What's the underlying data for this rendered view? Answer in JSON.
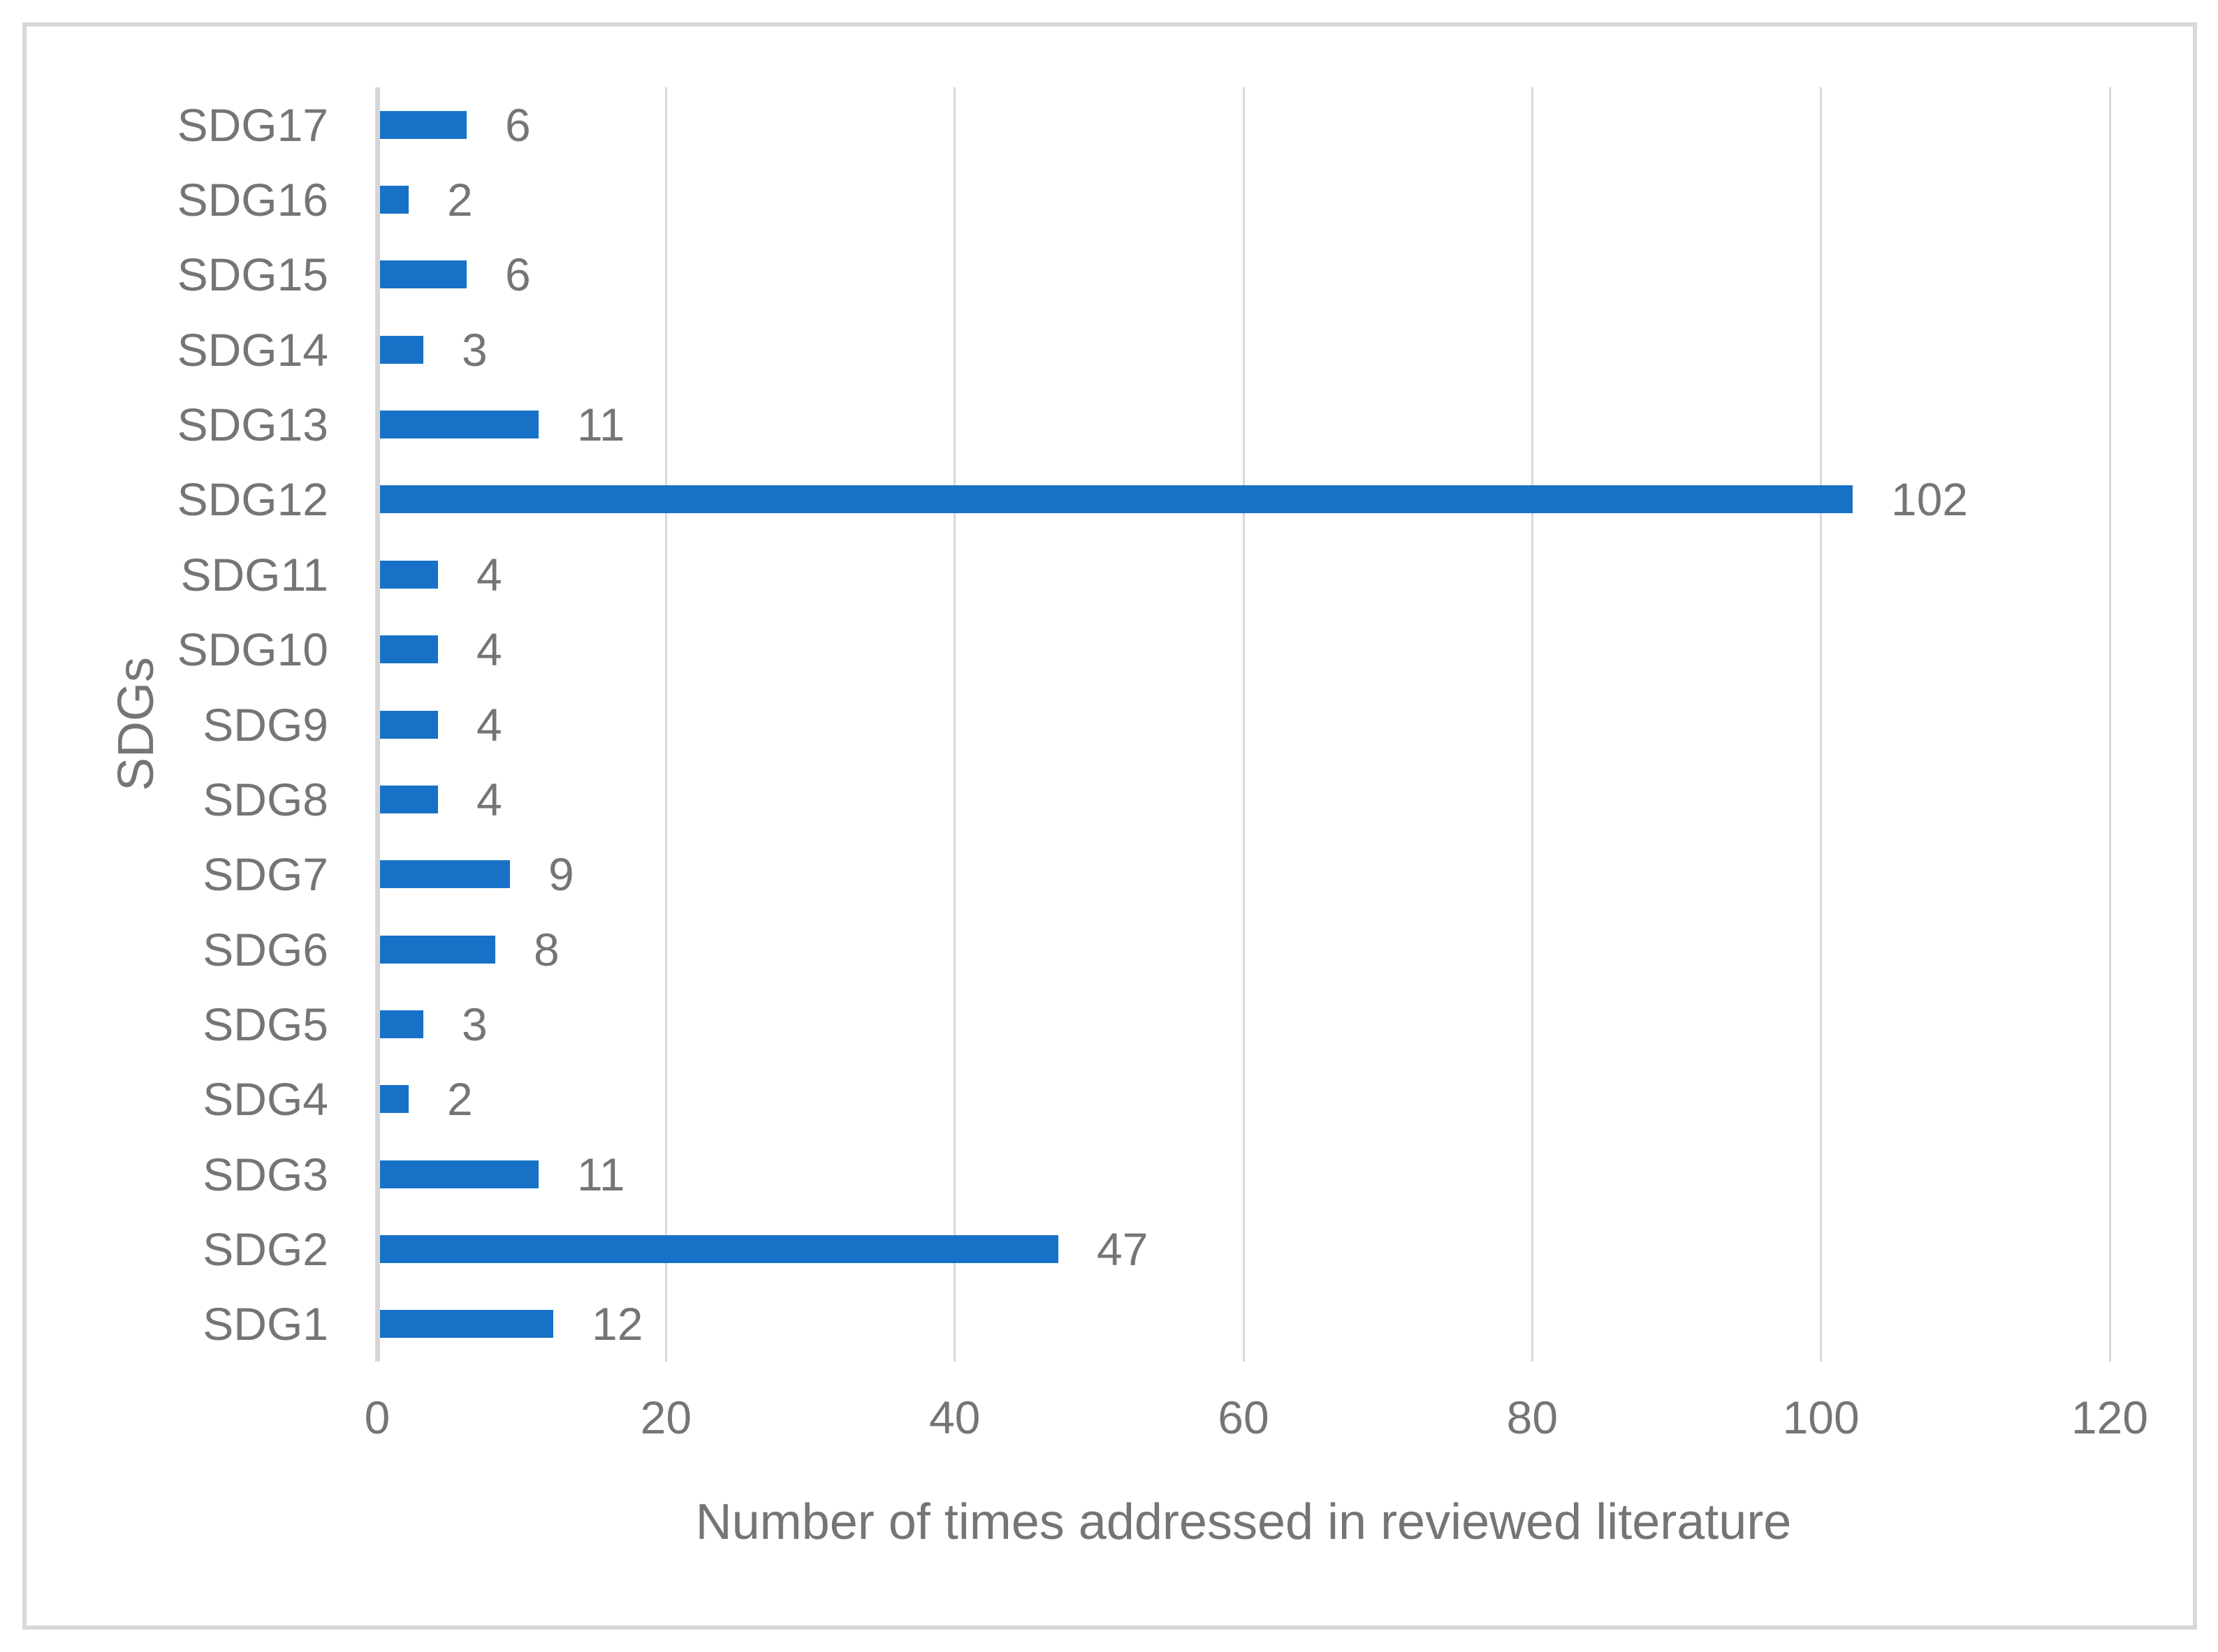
{
  "chart_data": {
    "type": "bar",
    "orientation": "horizontal",
    "title": "",
    "xlabel": "Number of times addressed in reviewed literature",
    "ylabel": "SDGs",
    "categories": [
      "SDG1",
      "SDG2",
      "SDG3",
      "SDG4",
      "SDG5",
      "SDG6",
      "SDG7",
      "SDG8",
      "SDG9",
      "SDG10",
      "SDG11",
      "SDG12",
      "SDG13",
      "SDG14",
      "SDG15",
      "SDG16",
      "SDG17"
    ],
    "values": [
      12,
      47,
      11,
      2,
      3,
      8,
      9,
      4,
      4,
      4,
      4,
      102,
      11,
      3,
      6,
      2,
      6
    ],
    "category_axis_order": "SDG1 at bottom, SDG17 at top",
    "data_labels_shown": true,
    "xlim": [
      0,
      120
    ],
    "xticks": [
      0,
      20,
      40,
      60,
      80,
      100,
      120
    ],
    "grid": "vertical-gridlines-only",
    "legend": "none",
    "colors": {
      "bar": "#1772C7",
      "text": "#757575",
      "gridline": "#D9D9D9",
      "axis_line": "#D6D6D6",
      "frame_border": "#D9D9D9",
      "background": "#FFFFFF"
    }
  }
}
